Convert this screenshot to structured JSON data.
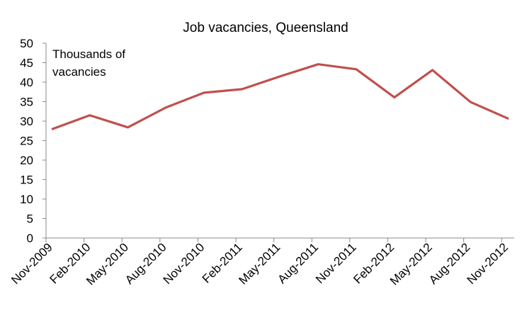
{
  "chart_data": {
    "type": "line",
    "title": "Job vacancies, Queensland",
    "ylabel": "Thousands of vacancies",
    "ylabel_lines": [
      "Thousands of",
      "vacancies"
    ],
    "xlabel": "",
    "ylim": [
      0,
      50
    ],
    "yticks": [
      0,
      5,
      10,
      15,
      20,
      25,
      30,
      35,
      40,
      45,
      50
    ],
    "grid": false,
    "categories": [
      "Nov-2009",
      "Feb-2010",
      "May-2010",
      "Aug-2010",
      "Nov-2010",
      "Feb-2011",
      "May-2011",
      "Aug-2011",
      "Nov-2011",
      "Feb-2012",
      "May-2012",
      "Aug-2012",
      "Nov-2012"
    ],
    "series": [
      {
        "values": [
          27.9,
          31.5,
          28.4,
          33.5,
          37.3,
          38.2,
          41.5,
          44.6,
          43.3,
          36.1,
          43.1,
          34.9,
          30.6
        ],
        "color": "#C0504D"
      }
    ]
  }
}
